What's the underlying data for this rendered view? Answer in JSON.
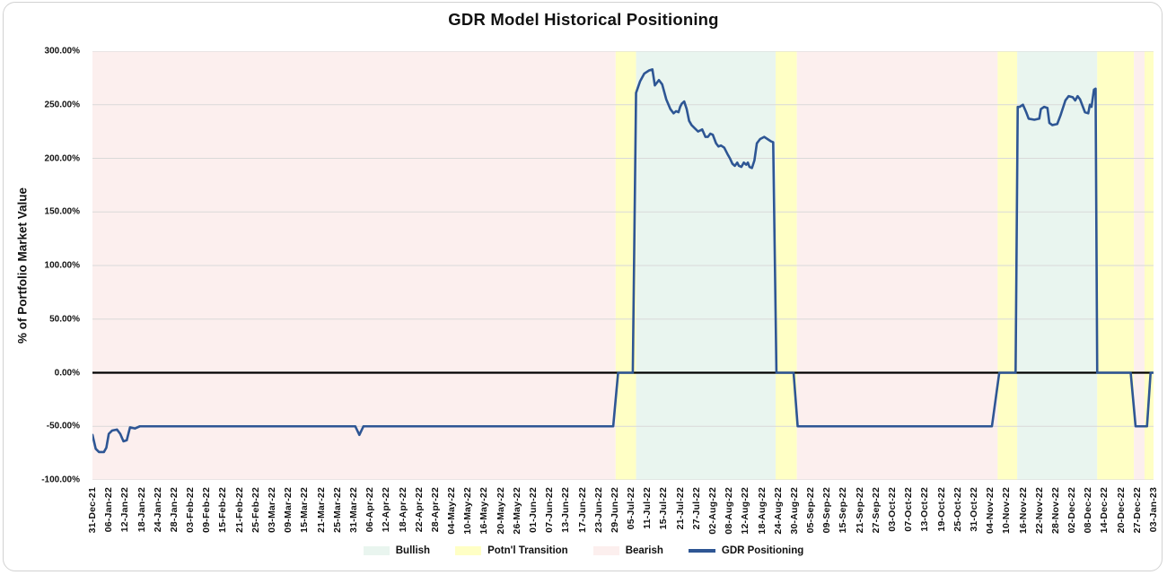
{
  "title": "GDR Model Historical Positioning",
  "y_axis_title": "% of Portfolio Market Value",
  "colors": {
    "bullish": "#e9f5ef",
    "transition": "#ffffc5",
    "bearish": "#fcefee",
    "line": "#2e5694",
    "gridline": "#d9d9d9",
    "zero_line": "#000000"
  },
  "legend": [
    {
      "label": "Bullish",
      "type": "swatch",
      "color_key": "bullish"
    },
    {
      "label": "Potn'l Transition",
      "type": "swatch",
      "color_key": "transition"
    },
    {
      "label": "Bearish",
      "type": "swatch",
      "color_key": "bearish"
    },
    {
      "label": "GDR Positioning",
      "type": "line",
      "color_key": "line"
    }
  ],
  "chart_data": {
    "type": "line",
    "title": "GDR Model Historical Positioning",
    "xlabel": "",
    "ylabel": "% of Portfolio Market Value",
    "ylim": [
      -100,
      300
    ],
    "grid": true,
    "legend_position": "bottom",
    "y_ticks": [
      "300.00%",
      "250.00%",
      "200.00%",
      "150.00%",
      "100.00%",
      "50.00%",
      "0.00%",
      "-50.00%",
      "-100.00%"
    ],
    "x_tick_labels": [
      "31-Dec-21",
      "06-Jan-22",
      "12-Jan-22",
      "18-Jan-22",
      "24-Jan-22",
      "28-Jan-22",
      "03-Feb-22",
      "09-Feb-22",
      "15-Feb-22",
      "21-Feb-22",
      "25-Feb-22",
      "03-Mar-22",
      "09-Mar-22",
      "15-Mar-22",
      "21-Mar-22",
      "25-Mar-22",
      "31-Mar-22",
      "06-Apr-22",
      "12-Apr-22",
      "18-Apr-22",
      "22-Apr-22",
      "28-Apr-22",
      "04-May-22",
      "10-May-22",
      "16-May-22",
      "20-May-22",
      "26-May-22",
      "01-Jun-22",
      "07-Jun-22",
      "13-Jun-22",
      "17-Jun-22",
      "23-Jun-22",
      "29-Jun-22",
      "05-Jul-22",
      "11-Jul-22",
      "15-Jul-22",
      "21-Jul-22",
      "27-Jul-22",
      "02-Aug-22",
      "08-Aug-22",
      "12-Aug-22",
      "18-Aug-22",
      "24-Aug-22",
      "30-Aug-22",
      "05-Sep-22",
      "09-Sep-22",
      "15-Sep-22",
      "21-Sep-22",
      "27-Sep-22",
      "03-Oct-22",
      "07-Oct-22",
      "13-Oct-22",
      "19-Oct-22",
      "25-Oct-22",
      "31-Oct-22",
      "04-Nov-22",
      "10-Nov-22",
      "16-Nov-22",
      "22-Nov-22",
      "28-Nov-22",
      "02-Dec-22",
      "08-Dec-22",
      "14-Dec-22",
      "20-Dec-22",
      "27-Dec-22",
      "03-Jan-23"
    ],
    "regions": [
      {
        "label": "Bearish",
        "start_date": "31-Dec-21",
        "end_date": "29-Jun-22",
        "start": 0,
        "end": 32.05
      },
      {
        "label": "Potn'l Transition",
        "start_date": "29-Jun-22",
        "end_date": "05-Jul-22",
        "start": 32.05,
        "end": 33.3
      },
      {
        "label": "Bullish",
        "start_date": "05-Jul-22",
        "end_date": "24-Aug-22",
        "start": 33.3,
        "end": 41.85
      },
      {
        "label": "Potn'l Transition",
        "start_date": "24-Aug-22",
        "end_date": "30-Aug-22",
        "start": 41.85,
        "end": 43.15
      },
      {
        "label": "Bearish",
        "start_date": "30-Aug-22",
        "end_date": "10-Nov-22",
        "start": 43.15,
        "end": 55.45
      },
      {
        "label": "Potn'l Transition",
        "start_date": "10-Nov-22",
        "end_date": "16-Nov-22",
        "start": 55.45,
        "end": 56.65
      },
      {
        "label": "Bullish",
        "start_date": "16-Nov-22",
        "end_date": "12-Dec-22",
        "start": 56.65,
        "end": 61.55
      },
      {
        "label": "Potn'l Transition",
        "start_date": "12-Dec-22",
        "end_date": "21-Dec-22",
        "start": 61.55,
        "end": 63.8
      },
      {
        "label": "Bearish",
        "start_date": "21-Dec-22",
        "end_date": "28-Dec-22",
        "start": 63.8,
        "end": 64.45
      },
      {
        "label": "Potn'l Transition",
        "start_date": "28-Dec-22",
        "end_date": "03-Jan-23",
        "start": 64.45,
        "end": 65
      }
    ],
    "series": [
      {
        "name": "GDR Positioning",
        "points": [
          [
            0,
            -58
          ],
          [
            0.2,
            -71
          ],
          [
            0.4,
            -74
          ],
          [
            0.7,
            -74
          ],
          [
            0.85,
            -70
          ],
          [
            1.0,
            -57
          ],
          [
            1.2,
            -54
          ],
          [
            1.5,
            -53
          ],
          [
            1.7,
            -57
          ],
          [
            1.9,
            -64
          ],
          [
            2.1,
            -63
          ],
          [
            2.3,
            -51
          ],
          [
            2.6,
            -52
          ],
          [
            2.9,
            -50
          ],
          [
            16.1,
            -50
          ],
          [
            16.35,
            -58
          ],
          [
            16.6,
            -50
          ],
          [
            31.9,
            -50
          ],
          [
            32.2,
            0
          ],
          [
            33.1,
            0
          ],
          [
            33.3,
            261
          ],
          [
            33.55,
            272
          ],
          [
            33.8,
            279
          ],
          [
            34.1,
            282
          ],
          [
            34.3,
            283
          ],
          [
            34.45,
            268
          ],
          [
            34.7,
            273
          ],
          [
            34.9,
            269
          ],
          [
            35.15,
            255
          ],
          [
            35.4,
            246
          ],
          [
            35.6,
            242
          ],
          [
            35.75,
            244
          ],
          [
            35.9,
            243
          ],
          [
            36.0,
            248
          ],
          [
            36.1,
            251
          ],
          [
            36.25,
            253
          ],
          [
            36.4,
            246
          ],
          [
            36.55,
            235
          ],
          [
            36.7,
            231
          ],
          [
            36.9,
            228
          ],
          [
            37.1,
            225
          ],
          [
            37.35,
            227
          ],
          [
            37.55,
            220
          ],
          [
            37.7,
            220
          ],
          [
            37.85,
            223
          ],
          [
            38.0,
            222
          ],
          [
            38.2,
            214
          ],
          [
            38.35,
            211
          ],
          [
            38.5,
            212
          ],
          [
            38.7,
            210
          ],
          [
            38.9,
            204
          ],
          [
            39.05,
            200
          ],
          [
            39.2,
            195
          ],
          [
            39.35,
            193
          ],
          [
            39.5,
            196
          ],
          [
            39.6,
            193
          ],
          [
            39.75,
            192
          ],
          [
            39.9,
            196
          ],
          [
            40.05,
            194
          ],
          [
            40.15,
            196
          ],
          [
            40.25,
            192
          ],
          [
            40.4,
            191
          ],
          [
            40.55,
            198
          ],
          [
            40.7,
            214
          ],
          [
            40.9,
            218
          ],
          [
            41.15,
            220
          ],
          [
            41.35,
            218
          ],
          [
            41.55,
            216
          ],
          [
            41.7,
            215
          ],
          [
            41.9,
            0
          ],
          [
            42.95,
            0
          ],
          [
            43.2,
            -50
          ],
          [
            55.1,
            -50
          ],
          [
            55.55,
            0
          ],
          [
            56.55,
            0
          ],
          [
            56.68,
            248
          ],
          [
            56.8,
            248
          ],
          [
            57.0,
            250
          ],
          [
            57.2,
            243
          ],
          [
            57.35,
            237
          ],
          [
            57.7,
            236
          ],
          [
            58.0,
            237
          ],
          [
            58.1,
            246
          ],
          [
            58.3,
            248
          ],
          [
            58.5,
            247
          ],
          [
            58.62,
            233
          ],
          [
            58.8,
            231
          ],
          [
            59.1,
            232
          ],
          [
            59.3,
            240
          ],
          [
            59.6,
            254
          ],
          [
            59.8,
            258
          ],
          [
            60.05,
            257
          ],
          [
            60.2,
            254
          ],
          [
            60.35,
            258
          ],
          [
            60.5,
            255
          ],
          [
            60.8,
            243
          ],
          [
            61.0,
            242
          ],
          [
            61.1,
            250
          ],
          [
            61.2,
            248
          ],
          [
            61.35,
            264
          ],
          [
            61.45,
            265
          ],
          [
            61.55,
            0
          ],
          [
            63.6,
            0
          ],
          [
            63.9,
            -50
          ],
          [
            64.6,
            -50
          ],
          [
            64.82,
            0
          ],
          [
            64.95,
            0
          ]
        ]
      }
    ]
  }
}
